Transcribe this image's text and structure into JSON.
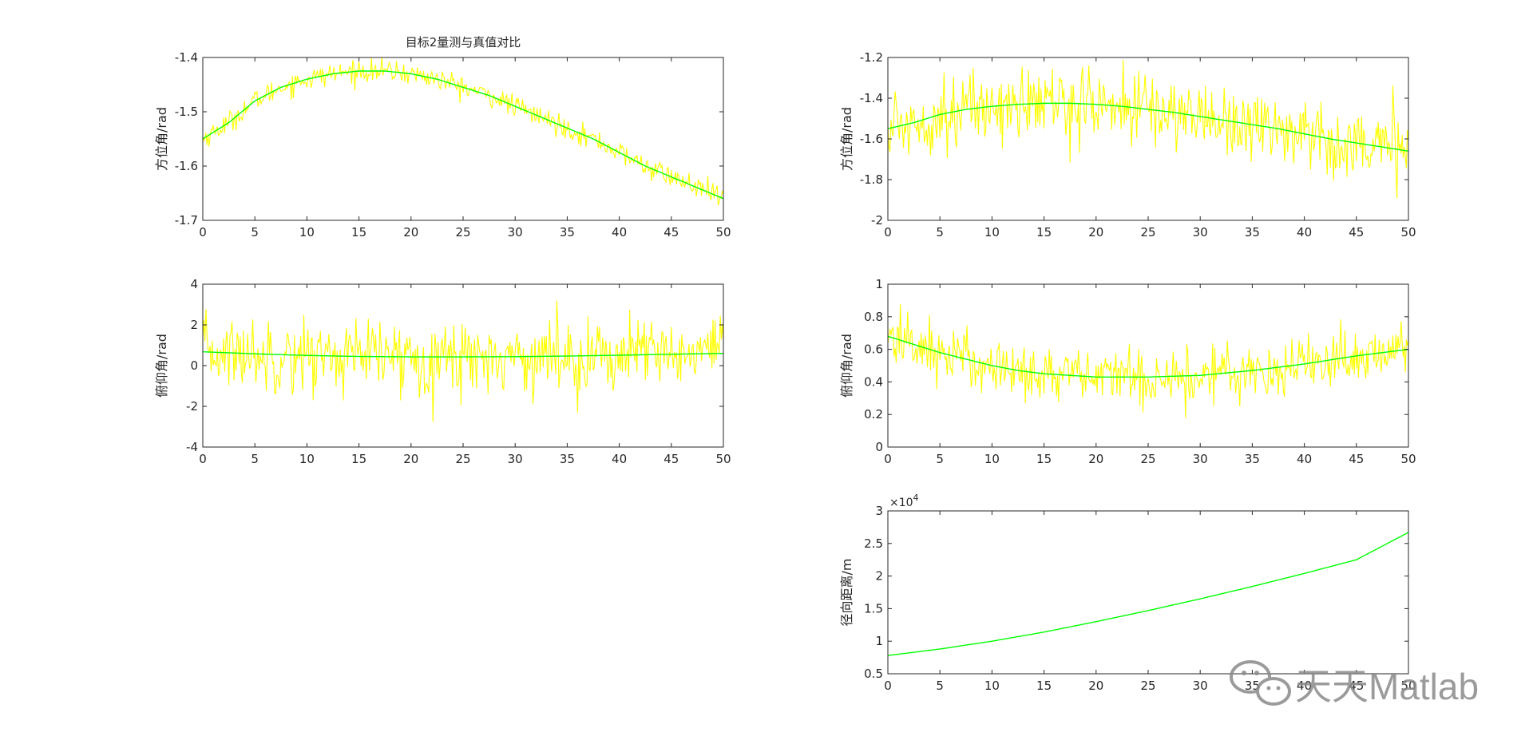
{
  "figure": {
    "title": "目标2量测与真值对比",
    "colors": {
      "measured": "#ffff00",
      "truth": "#00ff00",
      "axes": "#262626",
      "background": "#ffffff"
    },
    "watermark": {
      "text": "天天Matlab",
      "icon": "wechat-icon"
    }
  },
  "chart_data": [
    {
      "id": "az_left",
      "type": "line",
      "title": "目标2量测与真值对比",
      "xlabel": "",
      "ylabel": "方位角/rad",
      "xlim": [
        0,
        50
      ],
      "ylim": [
        -1.7,
        -1.4
      ],
      "xticks": [
        0,
        5,
        10,
        15,
        20,
        25,
        30,
        35,
        40,
        45,
        50
      ],
      "yticks": [
        -1.7,
        -1.6,
        -1.5,
        -1.4
      ],
      "ytick_labels": [
        "-1.7",
        "-1.6",
        "-1.5",
        "-1.4"
      ],
      "series": [
        {
          "role": "measured",
          "color": "#ffff00",
          "noise_sd": 0.01,
          "x": [
            0,
            2.5,
            5,
            7.5,
            10,
            12.5,
            15,
            17.5,
            20,
            22.5,
            25,
            27.5,
            30,
            32.5,
            35,
            37.5,
            40,
            42.5,
            45,
            47.5,
            50
          ],
          "y": [
            -1.55,
            -1.52,
            -1.48,
            -1.455,
            -1.44,
            -1.43,
            -1.425,
            -1.425,
            -1.43,
            -1.44,
            -1.455,
            -1.47,
            -1.49,
            -1.51,
            -1.53,
            -1.55,
            -1.575,
            -1.6,
            -1.62,
            -1.64,
            -1.66
          ]
        },
        {
          "role": "truth",
          "color": "#00ff00",
          "x": [
            0,
            2.5,
            5,
            7.5,
            10,
            12.5,
            15,
            17.5,
            20,
            22.5,
            25,
            27.5,
            30,
            32.5,
            35,
            37.5,
            40,
            42.5,
            45,
            47.5,
            50
          ],
          "y": [
            -1.55,
            -1.52,
            -1.48,
            -1.455,
            -1.44,
            -1.43,
            -1.425,
            -1.425,
            -1.43,
            -1.44,
            -1.455,
            -1.47,
            -1.49,
            -1.51,
            -1.53,
            -1.55,
            -1.575,
            -1.6,
            -1.62,
            -1.64,
            -1.66
          ]
        }
      ]
    },
    {
      "id": "el_left",
      "type": "line",
      "xlabel": "",
      "ylabel": "俯仰角/rad",
      "xlim": [
        0,
        50
      ],
      "ylim": [
        -4,
        4
      ],
      "xticks": [
        0,
        5,
        10,
        15,
        20,
        25,
        30,
        35,
        40,
        45,
        50
      ],
      "yticks": [
        -4,
        -2,
        0,
        2,
        4
      ],
      "ytick_labels": [
        "-4",
        "-2",
        "0",
        "2",
        "4"
      ],
      "series": [
        {
          "role": "measured",
          "color": "#ffff00",
          "noise_sd": 0.9,
          "x": [
            0,
            5,
            10,
            15,
            20,
            25,
            30,
            35,
            40,
            45,
            50
          ],
          "y": [
            0.68,
            0.58,
            0.5,
            0.45,
            0.43,
            0.43,
            0.44,
            0.47,
            0.51,
            0.56,
            0.6
          ]
        },
        {
          "role": "truth",
          "color": "#00ff00",
          "x": [
            0,
            5,
            10,
            15,
            20,
            25,
            30,
            35,
            40,
            45,
            50
          ],
          "y": [
            0.68,
            0.58,
            0.5,
            0.45,
            0.43,
            0.43,
            0.44,
            0.47,
            0.51,
            0.56,
            0.6
          ]
        }
      ]
    },
    {
      "id": "az_right",
      "type": "line",
      "xlabel": "",
      "ylabel": "方位角/rad",
      "xlim": [
        0,
        50
      ],
      "ylim": [
        -2,
        -1.2
      ],
      "xticks": [
        0,
        5,
        10,
        15,
        20,
        25,
        30,
        35,
        40,
        45,
        50
      ],
      "yticks": [
        -2,
        -1.8,
        -1.6,
        -1.4,
        -1.2
      ],
      "ytick_labels": [
        "-2",
        "-1.8",
        "-1.6",
        "-1.4",
        "-1.2"
      ],
      "series": [
        {
          "role": "measured",
          "color": "#ffff00",
          "noise_sd": 0.09,
          "x": [
            0,
            2.5,
            5,
            7.5,
            10,
            12.5,
            15,
            17.5,
            20,
            22.5,
            25,
            27.5,
            30,
            32.5,
            35,
            37.5,
            40,
            42.5,
            45,
            47.5,
            50
          ],
          "y": [
            -1.55,
            -1.52,
            -1.48,
            -1.455,
            -1.44,
            -1.43,
            -1.425,
            -1.425,
            -1.43,
            -1.44,
            -1.455,
            -1.47,
            -1.49,
            -1.51,
            -1.53,
            -1.55,
            -1.575,
            -1.6,
            -1.62,
            -1.64,
            -1.66
          ]
        },
        {
          "role": "truth",
          "color": "#00ff00",
          "x": [
            0,
            2.5,
            5,
            7.5,
            10,
            12.5,
            15,
            17.5,
            20,
            22.5,
            25,
            27.5,
            30,
            32.5,
            35,
            37.5,
            40,
            42.5,
            45,
            47.5,
            50
          ],
          "y": [
            -1.55,
            -1.52,
            -1.48,
            -1.455,
            -1.44,
            -1.43,
            -1.425,
            -1.425,
            -1.43,
            -1.44,
            -1.455,
            -1.47,
            -1.49,
            -1.51,
            -1.53,
            -1.55,
            -1.575,
            -1.6,
            -1.62,
            -1.64,
            -1.66
          ]
        }
      ]
    },
    {
      "id": "el_right",
      "type": "line",
      "xlabel": "",
      "ylabel": "俯仰角/rad",
      "xlim": [
        0,
        50
      ],
      "ylim": [
        0,
        1
      ],
      "xticks": [
        0,
        5,
        10,
        15,
        20,
        25,
        30,
        35,
        40,
        45,
        50
      ],
      "yticks": [
        0,
        0.2,
        0.4,
        0.6,
        0.8,
        1
      ],
      "ytick_labels": [
        "0",
        "0.2",
        "0.4",
        "0.6",
        "0.8",
        "1"
      ],
      "series": [
        {
          "role": "measured",
          "color": "#ffff00",
          "noise_sd": 0.09,
          "x": [
            0,
            2.5,
            5,
            7.5,
            10,
            12.5,
            15,
            17.5,
            20,
            22.5,
            25,
            27.5,
            30,
            32.5,
            35,
            37.5,
            40,
            42.5,
            45,
            47.5,
            50
          ],
          "y": [
            0.68,
            0.63,
            0.58,
            0.54,
            0.5,
            0.47,
            0.45,
            0.44,
            0.43,
            0.43,
            0.43,
            0.435,
            0.44,
            0.455,
            0.47,
            0.49,
            0.51,
            0.535,
            0.56,
            0.58,
            0.6
          ]
        },
        {
          "role": "truth",
          "color": "#00ff00",
          "x": [
            0,
            2.5,
            5,
            7.5,
            10,
            12.5,
            15,
            17.5,
            20,
            22.5,
            25,
            27.5,
            30,
            32.5,
            35,
            37.5,
            40,
            42.5,
            45,
            47.5,
            50
          ],
          "y": [
            0.68,
            0.63,
            0.58,
            0.54,
            0.5,
            0.47,
            0.45,
            0.44,
            0.43,
            0.43,
            0.43,
            0.435,
            0.44,
            0.455,
            0.47,
            0.49,
            0.51,
            0.535,
            0.56,
            0.58,
            0.6
          ]
        }
      ]
    },
    {
      "id": "range_right",
      "type": "line",
      "xlabel": "",
      "ylabel": "径向距离/m",
      "exponent_label": "×10",
      "exponent_power": "4",
      "xlim": [
        0,
        50
      ],
      "ylim": [
        0.5,
        3
      ],
      "xticks": [
        0,
        5,
        10,
        15,
        20,
        25,
        30,
        35,
        40,
        45,
        50
      ],
      "yticks": [
        0.5,
        1,
        1.5,
        2,
        2.5,
        3
      ],
      "ytick_labels": [
        "0.5",
        "1",
        "1.5",
        "2",
        "2.5",
        "3"
      ],
      "series": [
        {
          "role": "truth",
          "color": "#00ff00",
          "x": [
            0,
            5,
            10,
            15,
            20,
            25,
            30,
            35,
            40,
            45,
            50
          ],
          "y": [
            0.78,
            0.88,
            1.0,
            1.14,
            1.3,
            1.47,
            1.65,
            1.84,
            2.04,
            2.25,
            2.67
          ]
        }
      ]
    }
  ]
}
